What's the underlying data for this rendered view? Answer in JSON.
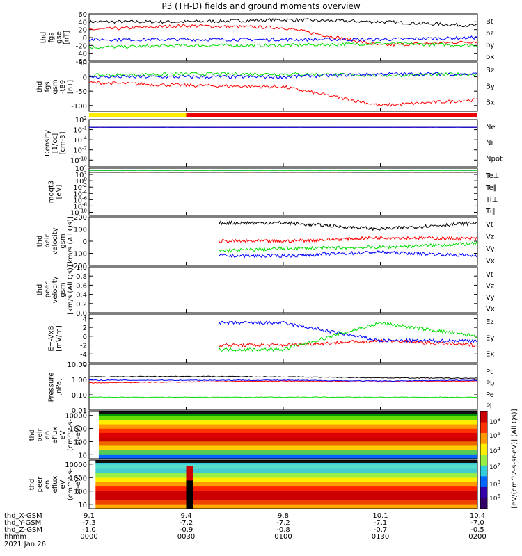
{
  "title": "P3 (TH-D) fields and ground moments overview",
  "date": "2021 Jan 26",
  "footer": {
    "row_labels": [
      "thd_X-GSM",
      "thd_Y-GSM",
      "thd_Z-GSM",
      "hhmm"
    ],
    "columns": [
      {
        "hhmm": "0000",
        "x": "9.1",
        "y": "-7.3",
        "z": "-1.0"
      },
      {
        "hhmm": "0030",
        "x": "9.4",
        "y": "-7.2",
        "z": "-0.9"
      },
      {
        "hhmm": "0100",
        "x": "9.8",
        "y": "-7.2",
        "z": "-0.8"
      },
      {
        "hhmm": "0130",
        "x": "10.1",
        "y": "-7.1",
        "z": "-0.7"
      },
      {
        "hhmm": "0200",
        "x": "10.4",
        "y": "-7.0",
        "z": "-0.5"
      }
    ]
  },
  "colorbar": {
    "label": "[eV/(cm^2-s-sr-eV)] (All Qs)]",
    "ticks": [
      "10^8",
      "10^6",
      "10^4",
      "10^2"
    ]
  },
  "chart_data": [
    {
      "type": "line",
      "id": "fgs",
      "ylabel": [
        "thd",
        "fgs",
        "gse",
        "[nT]"
      ],
      "yticks": [
        "60",
        "40",
        "20",
        "0",
        "-20",
        "-40",
        "-60"
      ],
      "ylim": [
        -60,
        60
      ],
      "x": [
        "0000",
        "0030",
        "0100",
        "0130",
        "0200"
      ],
      "series": [
        {
          "name": "Bt",
          "color": "#000000",
          "values": [
            40,
            40,
            45,
            40,
            30
          ]
        },
        {
          "name": "bz",
          "color": "#ff0000",
          "values": [
            20,
            30,
            25,
            -20,
            -10
          ]
        },
        {
          "name": "by",
          "color": "#00dd00",
          "values": [
            -25,
            -20,
            -20,
            -15,
            -20
          ]
        },
        {
          "name": "bx",
          "color": "#0000ff",
          "values": [
            -5,
            -5,
            -5,
            -5,
            0
          ]
        }
      ]
    },
    {
      "type": "line",
      "id": "fgs_gsm",
      "ylabel": [
        "thd",
        "fgs",
        "gsm",
        "-t89",
        "[nT]"
      ],
      "yticks": [
        "50",
        "0",
        "-50",
        "-100"
      ],
      "ylim": [
        -120,
        50
      ],
      "x": [
        "0000",
        "0030",
        "0100",
        "0130",
        "0200"
      ],
      "series": [
        {
          "name": "Bz",
          "color": "#ff0000",
          "values": [
            -20,
            -30,
            -35,
            -100,
            -80
          ]
        },
        {
          "name": "By",
          "color": "#00dd00",
          "values": [
            5,
            10,
            10,
            5,
            10
          ]
        },
        {
          "name": "Bx",
          "color": "#0000ff",
          "values": [
            0,
            0,
            0,
            10,
            10
          ]
        }
      ]
    },
    {
      "type": "line",
      "id": "density",
      "ylabel": [
        "Density",
        "[1/cc]",
        "[cm-3]"
      ],
      "yticks": [
        "10^2",
        "10^-1",
        "10^-4",
        "10^-7",
        "10^-10"
      ],
      "ylim": [
        -12,
        2
      ],
      "log": true,
      "x": [
        "0000",
        "0030",
        "0100",
        "0130",
        "0200"
      ],
      "series": [
        {
          "name": "Ne",
          "color": "#ff0000",
          "values": [
            0.5,
            0.5,
            0.5,
            0.5,
            0.5
          ]
        },
        {
          "name": "Ni",
          "color": "#000000",
          "values": [
            0.5,
            0.5,
            0.5,
            0.5,
            0.5
          ]
        },
        {
          "name": "Npot",
          "color": "#0000ff",
          "values": [
            0.5,
            0.5,
            0.5,
            0.5,
            0.5
          ]
        }
      ]
    },
    {
      "type": "line",
      "id": "temperature",
      "ylabel": [
        "moqt3",
        "[eV]"
      ],
      "yticks": [
        "10^4",
        "10^2",
        "10^0",
        "10^-2",
        "10^-4",
        "10^-6",
        "10^-8",
        "10^-10"
      ],
      "ylim": [
        -11,
        4
      ],
      "log": true,
      "x": [
        "0000",
        "0030",
        "0100",
        "0130",
        "0200"
      ],
      "series": [
        {
          "name": "Te⊥",
          "color": "#ff0000",
          "values": [
            500,
            500,
            500,
            500,
            500
          ]
        },
        {
          "name": "Te‖",
          "color": "#000000",
          "values": [
            500,
            500,
            500,
            500,
            500
          ]
        },
        {
          "name": "Ti⊥",
          "color": "#0000ff",
          "values": [
            2000,
            2000,
            2000,
            2000,
            2000
          ]
        },
        {
          "name": "Ti‖",
          "color": "#00dd00",
          "values": [
            2000,
            2000,
            2000,
            2000,
            2000
          ]
        }
      ]
    },
    {
      "type": "line",
      "id": "peir_velocity",
      "ylabel": [
        "thd",
        "peir",
        "velocity",
        "gsm",
        "[km/s (All Qs)]"
      ],
      "yticks": [
        "200",
        "100",
        "0",
        "-100",
        "-200"
      ],
      "ylim": [
        -200,
        200
      ],
      "x": [
        "0040",
        "0100",
        "0130",
        "0200"
      ],
      "series": [
        {
          "name": "Vt",
          "color": "#000000",
          "values": [
            150,
            150,
            100,
            150
          ]
        },
        {
          "name": "Vz",
          "color": "#ff0000",
          "values": [
            0,
            0,
            30,
            20
          ]
        },
        {
          "name": "Vy",
          "color": "#00dd00",
          "values": [
            -80,
            -60,
            -50,
            -20
          ]
        },
        {
          "name": "Vx",
          "color": "#0000ff",
          "values": [
            -120,
            -120,
            -90,
            -120
          ]
        }
      ]
    },
    {
      "type": "line",
      "id": "peer_velocity",
      "ylabel": [
        "thd",
        "peer",
        "velocity",
        "gsm",
        "[km/s (All Qs)]"
      ],
      "yticks": [
        "1.0",
        "0.8",
        "0.6",
        "0.4",
        "0.2",
        "0.0"
      ],
      "ylim": [
        0,
        1
      ],
      "x": [],
      "series": [
        {
          "name": "Vt",
          "color": "#000000",
          "values": []
        },
        {
          "name": "Vz",
          "color": "#ff0000",
          "values": []
        },
        {
          "name": "Vy",
          "color": "#00dd00",
          "values": []
        },
        {
          "name": "Vx",
          "color": "#0000ff",
          "values": []
        }
      ]
    },
    {
      "type": "line",
      "id": "efield",
      "ylabel": [
        "E=-VxB",
        "[mV/m]"
      ],
      "yticks": [
        "4",
        "2",
        "0",
        "-2",
        "-4",
        "-6"
      ],
      "ylim": [
        -6,
        5
      ],
      "x": [
        "0040",
        "0100",
        "0130",
        "0200"
      ],
      "series": [
        {
          "name": "Ez",
          "color": "#ff0000",
          "values": [
            -2,
            -2,
            -1,
            -2
          ]
        },
        {
          "name": "Ey",
          "color": "#00dd00",
          "values": [
            -3,
            -3,
            3,
            0
          ]
        },
        {
          "name": "Ex",
          "color": "#0000ff",
          "values": [
            3,
            3,
            -1,
            -1
          ]
        }
      ]
    },
    {
      "type": "line",
      "id": "pressure",
      "ylabel": [
        "Pressure",
        "[nPa]"
      ],
      "yticks": [
        "10.00",
        "1.00",
        "0.10",
        "0.01"
      ],
      "ylim": [
        -2,
        1
      ],
      "log": true,
      "x": [
        "0000",
        "0030",
        "0100",
        "0130",
        "0200"
      ],
      "series": [
        {
          "name": "Pt",
          "color": "#000000",
          "values": [
            1.5,
            1.6,
            1.5,
            1.3,
            1.2
          ]
        },
        {
          "name": "Pb",
          "color": "#ff0000",
          "values": [
            0.6,
            0.7,
            0.8,
            0.7,
            0.8
          ]
        },
        {
          "name": "Pe",
          "color": "#00dd00",
          "values": [
            0.07,
            0.07,
            0.07,
            0.07,
            0.07
          ]
        },
        {
          "name": "Pi",
          "color": "#0000ff",
          "values": [
            0.9,
            0.9,
            0.9,
            0.8,
            0.9
          ]
        }
      ]
    },
    {
      "type": "heatmap",
      "id": "peir_spec",
      "ylabel": [
        "thd",
        "peir",
        "en",
        "eflux",
        "eV",
        "(cm^2-s-",
        "sr-eV)"
      ],
      "yticks": [
        "10000",
        "1000",
        "100",
        "10"
      ]
    },
    {
      "type": "heatmap",
      "id": "peer_spec",
      "ylabel": [
        "thd",
        "peer",
        "en",
        "eflux",
        "eV",
        "(cm^2-s-",
        "sr-eV)"
      ],
      "yticks": [
        "10000",
        "1000",
        "100",
        "10"
      ]
    }
  ]
}
